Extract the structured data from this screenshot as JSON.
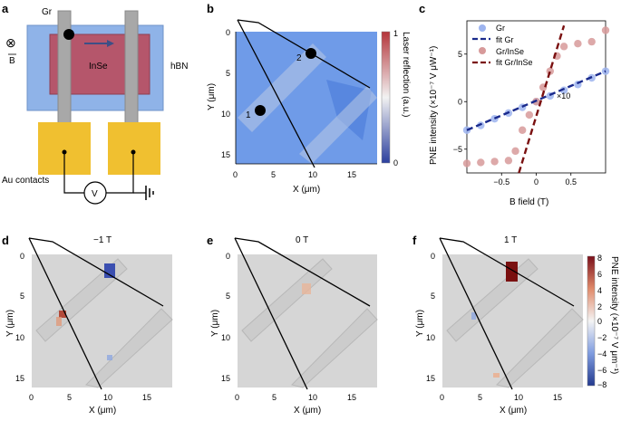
{
  "panels": {
    "a": {
      "letter": "a",
      "labels": {
        "gr": "Gr",
        "insE": "InSe",
        "hbn": "hBN",
        "au": "Au contacts",
        "b": "B",
        "v": "V",
        "otimes": "⊗"
      }
    },
    "b": {
      "letter": "b",
      "xlabel": "X (μm)",
      "ylabel": "Y (μm)",
      "xticks": [
        "0",
        "5",
        "10",
        "15"
      ],
      "yticks": [
        "0",
        "5",
        "10",
        "15"
      ],
      "colorbar_label": "Laser reflection (a.u.)",
      "colorbar_ticks": [
        "1",
        "0"
      ],
      "point_labels": [
        "1",
        "2"
      ],
      "xlim": [
        0,
        18
      ],
      "ylim": [
        0,
        16
      ]
    },
    "d": {
      "letter": "d",
      "title": "−1 T"
    },
    "e": {
      "letter": "e",
      "title": "0 T"
    },
    "f": {
      "letter": "f",
      "title": "1 T",
      "colorbar_label": "PNE intensity (×10⁻⁷ V μm⁻¹)",
      "colorbar_ticks": [
        "8",
        "6",
        "4",
        "2",
        "0",
        "−2",
        "−4",
        "−6",
        "−8"
      ]
    },
    "map_axes": {
      "xlabel": "X (μm)",
      "ylabel": "Y (μm)",
      "xticks": [
        "0",
        "5",
        "10",
        "15"
      ],
      "yticks": [
        "0",
        "5",
        "10",
        "15"
      ]
    }
  },
  "colors": {
    "hbn": "#8fb3e8",
    "insE": "#b5566b",
    "gr": "#a8a8a8",
    "au": "#f0c030",
    "blue_map": "#5b8de8",
    "gray_map": "#d6d6d6",
    "fit_gr": "#1a2a8c",
    "fit_grinse": "#7a1010",
    "pt_gr": "#9db4ef",
    "pt_grinse": "#d79a9a"
  },
  "chart_data": {
    "type": "scatter",
    "title": "",
    "xlabel": "B field (T)",
    "ylabel": "PNE intensity (×10⁻⁷ V μW⁻¹)",
    "xlim": [
      -1.0,
      1.0
    ],
    "ylim": [
      -7.5,
      8.5
    ],
    "xticks": [
      "−0.5",
      "0",
      "0.5"
    ],
    "yticks": [
      "5",
      "0",
      "−5"
    ],
    "annotation": "×10",
    "legend": [
      "Gr",
      "fit Gr",
      "Gr/InSe",
      "fit Gr/InSe"
    ],
    "series": [
      {
        "name": "Gr",
        "x": [
          -1.0,
          -0.8,
          -0.6,
          -0.4,
          -0.2,
          0.0,
          0.2,
          0.4,
          0.6,
          0.8,
          1.0
        ],
        "values": [
          -3.0,
          -2.5,
          -1.8,
          -1.2,
          -0.6,
          0.0,
          0.6,
          1.2,
          1.8,
          2.5,
          3.2
        ]
      },
      {
        "name": "fit Gr",
        "x": [
          -1.0,
          1.0
        ],
        "values": [
          -3.0,
          3.2
        ]
      },
      {
        "name": "Gr/InSe",
        "x": [
          -1.0,
          -0.8,
          -0.6,
          -0.4,
          -0.3,
          -0.2,
          -0.1,
          0.0,
          0.1,
          0.2,
          0.3,
          0.4,
          0.6,
          0.8,
          1.0
        ],
        "values": [
          -6.5,
          -6.4,
          -6.3,
          -6.2,
          -5.2,
          -3.0,
          -1.4,
          0.0,
          1.5,
          3.2,
          4.8,
          5.8,
          6.1,
          6.3,
          7.5
        ]
      },
      {
        "name": "fit Gr/InSe",
        "x": [
          -0.25,
          0.4
        ],
        "values": [
          -7.5,
          8.0
        ]
      }
    ]
  }
}
